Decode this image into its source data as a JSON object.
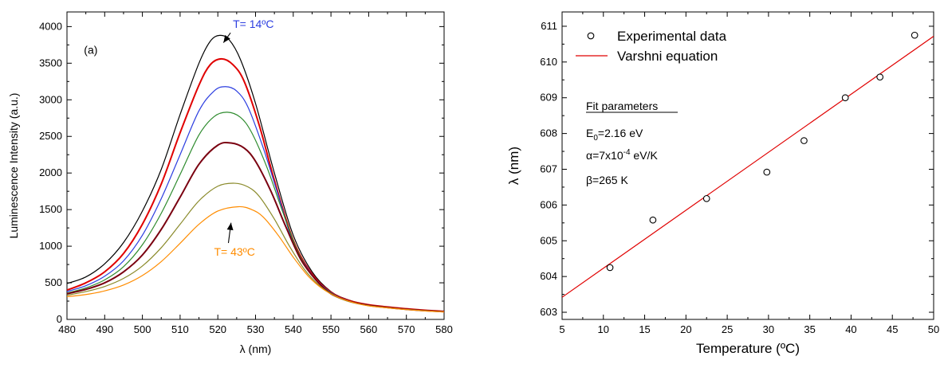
{
  "chart_data": [
    {
      "type": "line",
      "panel_label": "(a)",
      "xlabel": "λ (nm)",
      "ylabel": "Luminescence Intensity (a.u.)",
      "xlim": [
        480,
        580
      ],
      "ylim": [
        0,
        4200
      ],
      "x_ticks": [
        480,
        490,
        500,
        510,
        520,
        530,
        540,
        550,
        560,
        570,
        580
      ],
      "y_ticks": [
        0,
        500,
        1000,
        1500,
        2000,
        2500,
        3000,
        3500,
        4000
      ],
      "series": [
        {
          "color": "#000000",
          "peak_x": 520.5,
          "peak_y": 3880,
          "values": [
            [
              480,
              490
            ],
            [
              485,
              580
            ],
            [
              490,
              760
            ],
            [
              495,
              1050
            ],
            [
              500,
              1480
            ],
            [
              505,
              2050
            ],
            [
              510,
              2800
            ],
            [
              515,
              3500
            ],
            [
              518,
              3800
            ],
            [
              520.5,
              3880
            ],
            [
              523,
              3820
            ],
            [
              526,
              3550
            ],
            [
              530,
              2950
            ],
            [
              535,
              2000
            ],
            [
              540,
              1150
            ],
            [
              545,
              650
            ],
            [
              550,
              380
            ],
            [
              555,
              260
            ],
            [
              560,
              200
            ],
            [
              565,
              170
            ],
            [
              570,
              145
            ],
            [
              575,
              125
            ],
            [
              580,
              110
            ]
          ]
        },
        {
          "color": "#e00000",
          "peak_x": 521,
          "peak_y": 3560,
          "values": [
            [
              480,
              400
            ],
            [
              485,
              500
            ],
            [
              490,
              650
            ],
            [
              495,
              900
            ],
            [
              500,
              1300
            ],
            [
              505,
              1850
            ],
            [
              510,
              2550
            ],
            [
              515,
              3200
            ],
            [
              518,
              3480
            ],
            [
              521,
              3560
            ],
            [
              524,
              3480
            ],
            [
              527,
              3250
            ],
            [
              531,
              2650
            ],
            [
              535,
              1900
            ],
            [
              540,
              1080
            ],
            [
              545,
              620
            ],
            [
              550,
              370
            ],
            [
              555,
              255
            ],
            [
              560,
              200
            ],
            [
              565,
              170
            ],
            [
              570,
              145
            ],
            [
              575,
              125
            ],
            [
              580,
              110
            ]
          ]
        },
        {
          "color": "#2c3ee0",
          "peak_x": 522,
          "peak_y": 3180,
          "values": [
            [
              480,
              380
            ],
            [
              485,
              460
            ],
            [
              490,
              590
            ],
            [
              495,
              800
            ],
            [
              500,
              1150
            ],
            [
              505,
              1650
            ],
            [
              510,
              2250
            ],
            [
              515,
              2850
            ],
            [
              519,
              3120
            ],
            [
              522,
              3180
            ],
            [
              525,
              3120
            ],
            [
              528,
              2900
            ],
            [
              532,
              2350
            ],
            [
              536,
              1700
            ],
            [
              540,
              1050
            ],
            [
              545,
              610
            ],
            [
              550,
              365
            ],
            [
              555,
              250
            ],
            [
              560,
              195
            ],
            [
              565,
              165
            ],
            [
              570,
              140
            ],
            [
              575,
              122
            ],
            [
              580,
              108
            ]
          ]
        },
        {
          "color": "#2e8b2e",
          "peak_x": 522.5,
          "peak_y": 2830,
          "values": [
            [
              480,
              360
            ],
            [
              485,
              430
            ],
            [
              490,
              540
            ],
            [
              495,
              720
            ],
            [
              500,
              1020
            ],
            [
              505,
              1450
            ],
            [
              510,
              1980
            ],
            [
              515,
              2520
            ],
            [
              519,
              2770
            ],
            [
              522.5,
              2830
            ],
            [
              526,
              2760
            ],
            [
              529,
              2550
            ],
            [
              533,
              2080
            ],
            [
              537,
              1500
            ],
            [
              541,
              950
            ],
            [
              545,
              600
            ],
            [
              550,
              360
            ],
            [
              555,
              248
            ],
            [
              560,
              195
            ],
            [
              565,
              165
            ],
            [
              570,
              140
            ],
            [
              575,
              122
            ],
            [
              580,
              108
            ]
          ]
        },
        {
          "color": "#7a0010",
          "peak_x": 523.5,
          "peak_y": 2410,
          "values": [
            [
              480,
              350
            ],
            [
              485,
              410
            ],
            [
              490,
              500
            ],
            [
              495,
              650
            ],
            [
              500,
              880
            ],
            [
              505,
              1230
            ],
            [
              510,
              1670
            ],
            [
              515,
              2120
            ],
            [
              520,
              2380
            ],
            [
              523.5,
              2410
            ],
            [
              527,
              2340
            ],
            [
              530,
              2160
            ],
            [
              534,
              1760
            ],
            [
              538,
              1270
            ],
            [
              542,
              820
            ],
            [
              546,
              540
            ],
            [
              550,
              350
            ],
            [
              555,
              245
            ],
            [
              560,
              192
            ],
            [
              565,
              162
            ],
            [
              570,
              138
            ],
            [
              575,
              120
            ],
            [
              580,
              106
            ]
          ]
        },
        {
          "color": "#8a8a2a",
          "peak_x": 524.5,
          "peak_y": 1860,
          "values": [
            [
              480,
              330
            ],
            [
              485,
              380
            ],
            [
              490,
              450
            ],
            [
              495,
              560
            ],
            [
              500,
              730
            ],
            [
              505,
              980
            ],
            [
              510,
              1300
            ],
            [
              515,
              1620
            ],
            [
              520,
              1820
            ],
            [
              524.5,
              1860
            ],
            [
              528,
              1810
            ],
            [
              531,
              1680
            ],
            [
              535,
              1370
            ],
            [
              539,
              1000
            ],
            [
              543,
              680
            ],
            [
              547,
              460
            ],
            [
              551,
              320
            ],
            [
              555,
              240
            ],
            [
              560,
              188
            ],
            [
              565,
              160
            ],
            [
              570,
              136
            ],
            [
              575,
              118
            ],
            [
              580,
              104
            ]
          ]
        },
        {
          "color": "#ff8c00",
          "peak_x": 525.5,
          "peak_y": 1540,
          "values": [
            [
              480,
              310
            ],
            [
              485,
              340
            ],
            [
              490,
              390
            ],
            [
              495,
              470
            ],
            [
              500,
              600
            ],
            [
              505,
              790
            ],
            [
              510,
              1040
            ],
            [
              515,
              1300
            ],
            [
              520,
              1480
            ],
            [
              525.5,
              1540
            ],
            [
              529,
              1500
            ],
            [
              532,
              1400
            ],
            [
              536,
              1150
            ],
            [
              540,
              850
            ],
            [
              544,
              590
            ],
            [
              548,
              410
            ],
            [
              552,
              300
            ],
            [
              556,
              230
            ],
            [
              560,
              185
            ],
            [
              565,
              158
            ],
            [
              570,
              134
            ],
            [
              575,
              116
            ],
            [
              580,
              102
            ]
          ]
        }
      ],
      "annotations": [
        {
          "text": "T= 14ºC",
          "color": "#2c3ee0",
          "x": 524,
          "y": 3980,
          "arrow_to": [
            521.5,
            3780
          ]
        },
        {
          "text": "T= 43ºC",
          "color": "#ff8c00",
          "x": 519,
          "y": 870,
          "arrow_to": [
            523.5,
            1320
          ]
        }
      ]
    },
    {
      "type": "scatter",
      "xlabel": "Temperature (ºC)",
      "ylabel": "λ  (nm)",
      "xlim": [
        5,
        50
      ],
      "ylim": [
        602.8,
        611.4
      ],
      "x_ticks": [
        5,
        10,
        15,
        20,
        25,
        30,
        35,
        40,
        45,
        50
      ],
      "y_ticks": [
        603,
        604,
        605,
        606,
        607,
        608,
        609,
        610,
        611
      ],
      "legend": {
        "position": "top-left",
        "entries": [
          "Experimental data",
          "Varshni equation"
        ]
      },
      "fit_parameters": {
        "title": "Fit parameters",
        "e0_symbol": "E",
        "e0_subscript": "0",
        "e0_value": "=2.16 eV",
        "alpha_prefix": "α=7x10",
        "alpha_exponent": "-4",
        "alpha_suffix": " eV/K",
        "beta": "β=265 K"
      },
      "series": [
        {
          "name": "Experimental data",
          "kind": "markers",
          "color": "#000000",
          "x": [
            10.8,
            16.0,
            22.5,
            29.8,
            34.3,
            39.3,
            43.5,
            47.7
          ],
          "y": [
            604.25,
            605.58,
            606.18,
            606.92,
            607.8,
            609.0,
            609.58,
            610.75
          ]
        },
        {
          "name": "Varshni equation",
          "kind": "line",
          "color": "#e00000",
          "x": [
            5,
            50
          ],
          "y": [
            603.42,
            610.72
          ]
        }
      ]
    }
  ]
}
